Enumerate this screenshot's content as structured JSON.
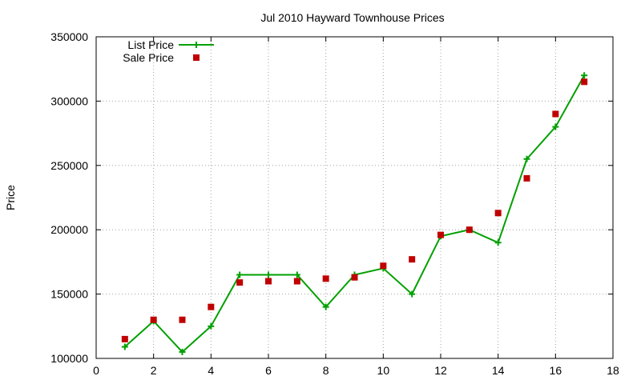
{
  "chart_data": {
    "type": "line",
    "title": "Jul 2010 Hayward Townhouse Prices",
    "xlabel": "",
    "ylabel": "Price",
    "xlim": [
      0,
      18
    ],
    "ylim": [
      100000,
      350000
    ],
    "x_ticks": [
      0,
      2,
      4,
      6,
      8,
      10,
      12,
      14,
      16,
      18
    ],
    "y_ticks": [
      100000,
      150000,
      200000,
      250000,
      300000,
      350000
    ],
    "x_tick_labels": [
      "0",
      "2",
      "4",
      "6",
      "8",
      "10",
      "12",
      "14",
      "16",
      "18"
    ],
    "y_tick_labels": [
      "100000",
      "150000",
      "200000",
      "250000",
      "300000",
      "350000"
    ],
    "grid": true,
    "legend_position": "top-left",
    "series": [
      {
        "name": "List Price",
        "style": "linespoints",
        "marker": "plus",
        "color": "#00a000",
        "points": [
          [
            1,
            109000
          ],
          [
            2,
            129000
          ],
          [
            3,
            105000
          ],
          [
            4,
            125000
          ],
          [
            5,
            165000
          ],
          [
            6,
            165000
          ],
          [
            7,
            165000
          ],
          [
            8,
            140000
          ],
          [
            9,
            165000
          ],
          [
            10,
            170000
          ],
          [
            11,
            150000
          ],
          [
            12,
            195000
          ],
          [
            13,
            200000
          ],
          [
            14,
            190000
          ],
          [
            15,
            255000
          ],
          [
            16,
            280000
          ],
          [
            17,
            320000
          ]
        ]
      },
      {
        "name": "Sale Price",
        "style": "points",
        "marker": "square",
        "color": "#c00000",
        "points": [
          [
            1,
            115000
          ],
          [
            2,
            130000
          ],
          [
            3,
            130000
          ],
          [
            4,
            140000
          ],
          [
            5,
            159000
          ],
          [
            6,
            160000
          ],
          [
            7,
            160000
          ],
          [
            8,
            162000
          ],
          [
            9,
            163000
          ],
          [
            10,
            172000
          ],
          [
            11,
            177000
          ],
          [
            12,
            196000
          ],
          [
            13,
            200000
          ],
          [
            14,
            213000
          ],
          [
            15,
            240000
          ],
          [
            16,
            290000
          ],
          [
            17,
            315000
          ]
        ]
      }
    ]
  }
}
